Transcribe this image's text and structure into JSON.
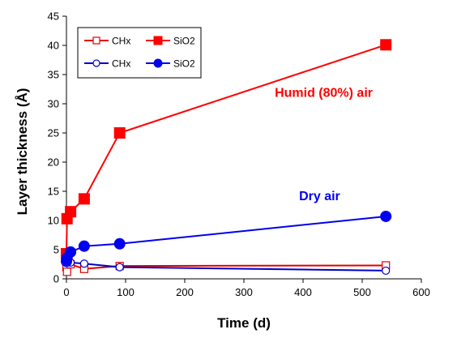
{
  "chart_data": {
    "type": "line",
    "title": "",
    "xlabel": "Time (d)",
    "ylabel": "Layer thickness (Å)",
    "xlim": [
      0,
      600
    ],
    "ylim": [
      0,
      45
    ],
    "xticks": [
      0,
      100,
      200,
      300,
      400,
      500,
      600
    ],
    "yticks": [
      0,
      5,
      10,
      15,
      20,
      25,
      30,
      35,
      40,
      45
    ],
    "grid": false,
    "legend_position": "top-left",
    "series": [
      {
        "name": "CHx",
        "condition": "humid",
        "color": "#e00000",
        "marker": "square-open",
        "x": [
          0,
          1,
          7,
          30,
          90,
          540
        ],
        "y": [
          2.0,
          1.2,
          2.5,
          1.7,
          2.2,
          2.3
        ]
      },
      {
        "name": "SiO2",
        "condition": "humid",
        "color": "#ff0000",
        "marker": "square-filled",
        "x": [
          0,
          1,
          7,
          30,
          90,
          540
        ],
        "y": [
          4.3,
          10.3,
          11.5,
          13.7,
          25.0,
          40.1
        ]
      },
      {
        "name": "CHx",
        "condition": "dry",
        "color": "#0000cc",
        "marker": "circle-open",
        "x": [
          0,
          1,
          7,
          30,
          90,
          540
        ],
        "y": [
          3.2,
          3.0,
          2.8,
          2.6,
          2.0,
          1.4
        ]
      },
      {
        "name": "SiO2",
        "condition": "dry",
        "color": "#0000ee",
        "marker": "circle-filled",
        "x": [
          0,
          1,
          7,
          30,
          90,
          540
        ],
        "y": [
          3.0,
          3.6,
          4.6,
          5.6,
          6.0,
          10.7
        ]
      }
    ],
    "legend": {
      "entries": [
        {
          "label": "CHx",
          "series_index": 0
        },
        {
          "label": "SiO2",
          "series_index": 1
        },
        {
          "label": "CHx",
          "series_index": 2
        },
        {
          "label": "SiO2",
          "series_index": 3
        }
      ]
    },
    "annotations": [
      {
        "text": "Humid (80%) air",
        "color": "#ff0000",
        "x": 435,
        "y": 31.2
      },
      {
        "text": "Dry air",
        "color": "#0000ee",
        "x": 428,
        "y": 13.5
      }
    ]
  }
}
